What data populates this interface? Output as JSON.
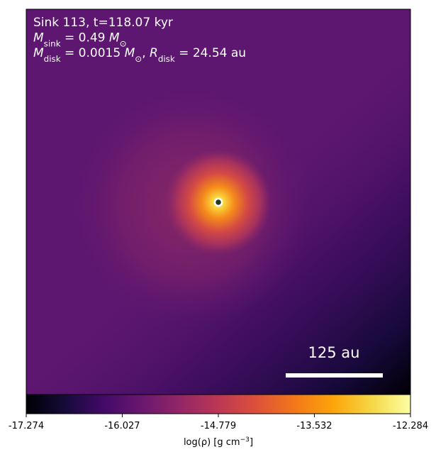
{
  "chart_data": {
    "type": "heatmap",
    "annotations": [
      [
        {
          "text": "Sink 113, t=118.07 kyr",
          "style": "normal"
        }
      ],
      [
        {
          "text": "M",
          "style": "italic"
        },
        {
          "text": "sink",
          "style": "sub"
        },
        {
          "text": " = 0.49 ",
          "style": "normal"
        },
        {
          "text": "M",
          "style": "italic"
        },
        {
          "text": "⊙",
          "style": "sub"
        }
      ],
      [
        {
          "text": "M",
          "style": "italic"
        },
        {
          "text": "disk",
          "style": "sub"
        },
        {
          "text": " = 0.0015 ",
          "style": "normal"
        },
        {
          "text": "M",
          "style": "italic"
        },
        {
          "text": "⊙",
          "style": "sub"
        },
        {
          "text": ", ",
          "style": "normal"
        },
        {
          "text": "R",
          "style": "italic"
        },
        {
          "text": "disk",
          "style": "sub"
        },
        {
          "text": " = 24.54 au",
          "style": "normal"
        }
      ]
    ],
    "scale_bar": "125 au",
    "colorbar": {
      "label": [
        {
          "text": "log(ρ) [g cm",
          "style": "normal"
        },
        {
          "text": "−3",
          "style": "sup"
        },
        {
          "text": "]",
          "style": "normal"
        }
      ],
      "lim": [
        -17.274,
        -12.284
      ],
      "ticks": [
        -17.274,
        -16.027,
        -14.779,
        -13.532,
        -12.284
      ],
      "colormap": [
        "#000004",
        "#160b39",
        "#420a68",
        "#6a176e",
        "#932667",
        "#bc3754",
        "#dd513a",
        "#f37819",
        "#fca50a",
        "#f6d746",
        "#fcffa4"
      ]
    }
  }
}
